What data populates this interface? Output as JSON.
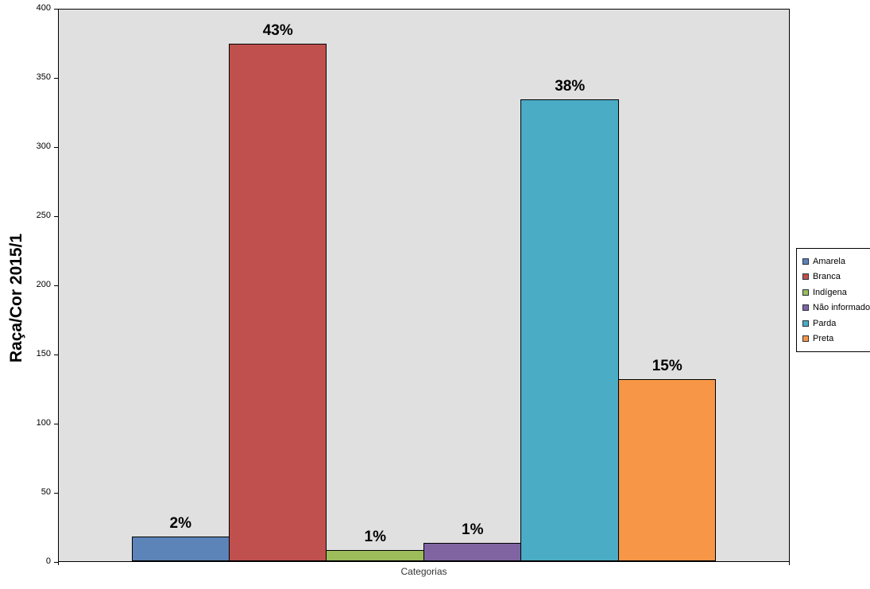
{
  "chart_data": {
    "type": "bar",
    "title": "",
    "ylabel": "Raça/Cor 2015/1",
    "xlabel": "Categorias",
    "ylim": [
      0,
      400
    ],
    "ytick_step": 50,
    "ytick_labels": [
      "0",
      "50",
      "100",
      "150",
      "200",
      "250",
      "300",
      "350",
      "400"
    ],
    "categories": [
      "Amarela",
      "Branca",
      "Indígena",
      "Não informado",
      "Parda",
      "Preta"
    ],
    "values": [
      18,
      375,
      8,
      13,
      335,
      132
    ],
    "bar_labels": [
      "2%",
      "43%",
      "1%",
      "1%",
      "38%",
      "15%"
    ],
    "colors": [
      "#5C84B8",
      "#C0504D",
      "#9DBD5B",
      "#8064A2",
      "#4BACC6",
      "#F79646"
    ],
    "legend_position": "right",
    "grid": false,
    "plot_background": "#E0E0E0",
    "bar_border_color": "#000000"
  }
}
